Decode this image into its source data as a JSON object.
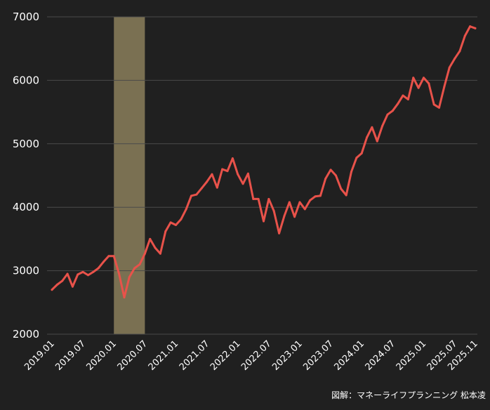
{
  "chart_data": {
    "type": "line",
    "colors": {
      "background": "#202020",
      "line": "#e8524a",
      "highlight": "#7a7052",
      "grid": "#4a4a4a",
      "text": "#ffffff"
    },
    "ylim": [
      2000,
      7000
    ],
    "y_ticks": [
      "2000",
      "3000",
      "4000",
      "5000",
      "6000",
      "7000"
    ],
    "x_tick_labels": [
      "2019.01",
      "2019.07",
      "2020.01",
      "2020.07",
      "2021.01",
      "2021.07",
      "2022.01",
      "2022.07",
      "2023.01",
      "2023.07",
      "2024.01",
      "2024.07",
      "2025.01",
      "2025.07",
      "2025.11"
    ],
    "grid": true,
    "highlight_period": [
      "2020.01",
      "2020.07"
    ],
    "series": [
      {
        "x": [
          "2019-01",
          "2019-02",
          "2019-03",
          "2019-04",
          "2019-05",
          "2019-06",
          "2019-07",
          "2019-08",
          "2019-09",
          "2019-10",
          "2019-11",
          "2019-12",
          "2020-01",
          "2020-02",
          "2020-03",
          "2020-04",
          "2020-05",
          "2020-06",
          "2020-07",
          "2020-08",
          "2020-09",
          "2020-10",
          "2020-11",
          "2020-12",
          "2021-01",
          "2021-02",
          "2021-03",
          "2021-04",
          "2021-05",
          "2021-06",
          "2021-07",
          "2021-08",
          "2021-09",
          "2021-10",
          "2021-11",
          "2021-12",
          "2022-01",
          "2022-02",
          "2022-03",
          "2022-04",
          "2022-05",
          "2022-06",
          "2022-07",
          "2022-08",
          "2022-09",
          "2022-10",
          "2022-11",
          "2022-12",
          "2023-01",
          "2023-02",
          "2023-03",
          "2023-04",
          "2023-05",
          "2023-06",
          "2023-07",
          "2023-08",
          "2023-09",
          "2023-10",
          "2023-11",
          "2023-12",
          "2024-01",
          "2024-02",
          "2024-03",
          "2024-04",
          "2024-05",
          "2024-06",
          "2024-07",
          "2024-08",
          "2024-09",
          "2024-10",
          "2024-11",
          "2024-12",
          "2025-01",
          "2025-02",
          "2025-03",
          "2025-04",
          "2025-05",
          "2025-06",
          "2025-07",
          "2025-08",
          "2025-09",
          "2025-10",
          "2025-11"
        ],
        "values": [
          2700,
          2780,
          2840,
          2950,
          2750,
          2940,
          2980,
          2930,
          2980,
          3040,
          3140,
          3230,
          3230,
          2950,
          2580,
          2900,
          3040,
          3100,
          3270,
          3500,
          3360,
          3270,
          3620,
          3760,
          3720,
          3810,
          3970,
          4180,
          4200,
          4300,
          4400,
          4520,
          4310,
          4600,
          4570,
          4770,
          4520,
          4370,
          4530,
          4130,
          4130,
          3780,
          4130,
          3940,
          3590,
          3860,
          4080,
          3850,
          4080,
          3970,
          4110,
          4170,
          4180,
          4450,
          4590,
          4500,
          4290,
          4190,
          4560,
          4780,
          4850,
          5100,
          5260,
          5040,
          5280,
          5460,
          5520,
          5630,
          5760,
          5700,
          6040,
          5880,
          6040,
          5950,
          5620,
          5570,
          5900,
          6200,
          6340,
          6460,
          6700,
          6850,
          6820
        ]
      }
    ]
  },
  "credit": "図解：マネーライフプランニング 松本凌"
}
